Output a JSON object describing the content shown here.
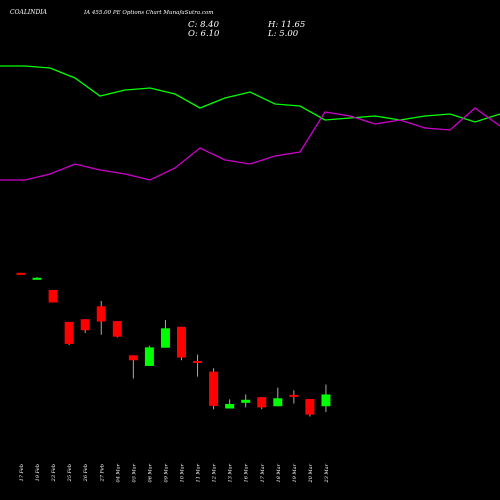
{
  "header": {
    "symbol": "COALINDIA",
    "description": "IA 455.00  PE Options  Chart MunafaSutra.com",
    "close_label": "C: 8.40",
    "high_label": "H: 11.65",
    "open_label": "O: 6.10",
    "low_label": "L: 5.00"
  },
  "chart_data": [
    {
      "type": "line",
      "series": [
        {
          "color": "#00ff00",
          "values": [
            92,
            92,
            91,
            86,
            77,
            80,
            81,
            78,
            71,
            76,
            79,
            73,
            72,
            65,
            66,
            67,
            65,
            67,
            68,
            64,
            68
          ]
        },
        {
          "color": "#cc00cc",
          "values": [
            35,
            35,
            38,
            43,
            40,
            38,
            35,
            41,
            51,
            45,
            43,
            47,
            49,
            69,
            67,
            63,
            65,
            61,
            60,
            71,
            62
          ]
        }
      ]
    },
    {
      "type": "candlestick",
      "categories": [
        "17 Feb",
        "19 Feb",
        "23 Feb",
        "25 Feb",
        "26 Feb",
        "27 Feb",
        "04 Mar",
        "05 Mar",
        "06 Mar",
        "09 Mar",
        "10 Mar",
        "11 Mar",
        "12 Mar",
        "13 Mar",
        "16 Mar",
        "17 Mar",
        "18 Mar",
        "19 Mar",
        "20 Mar",
        "23 Mar"
      ],
      "candles": [
        {
          "open": 90.6,
          "high": 90.6,
          "low": 90.0,
          "close": 90.0
        },
        {
          "open": 87.8,
          "high": 88.4,
          "low": 87.6,
          "close": 88.0
        },
        {
          "open": 81.6,
          "high": 81.6,
          "low": 75.0,
          "close": 75.0
        },
        {
          "open": 64.8,
          "high": 64.8,
          "low": 52.6,
          "close": 53.2
        },
        {
          "open": 66.2,
          "high": 66.2,
          "low": 59.0,
          "close": 60.4
        },
        {
          "open": 73.0,
          "high": 75.8,
          "low": 58.0,
          "close": 65.0
        },
        {
          "open": 65.2,
          "high": 65.2,
          "low": 56.6,
          "close": 57.0
        },
        {
          "open": 47.2,
          "high": 47.2,
          "low": 35.0,
          "close": 44.6
        },
        {
          "open": 41.6,
          "high": 52.2,
          "low": 41.6,
          "close": 51.4
        },
        {
          "open": 51.2,
          "high": 65.8,
          "low": 51.2,
          "close": 61.4
        },
        {
          "open": 62.2,
          "high": 62.2,
          "low": 44.6,
          "close": 46.0
        },
        {
          "open": 44.2,
          "high": 47.6,
          "low": 36.0,
          "close": 43.2
        },
        {
          "open": 38.6,
          "high": 40.4,
          "low": 18.8,
          "close": 20.6
        },
        {
          "open": 19.2,
          "high": 24.0,
          "low": 19.2,
          "close": 21.6
        },
        {
          "open": 22.2,
          "high": 26.6,
          "low": 19.8,
          "close": 23.8
        },
        {
          "open": 25.2,
          "high": 25.2,
          "low": 18.8,
          "close": 19.8
        },
        {
          "open": 20.4,
          "high": 30.2,
          "low": 20.4,
          "close": 24.6
        },
        {
          "open": 26.4,
          "high": 28.8,
          "low": 21.8,
          "close": 26.2
        },
        {
          "open": 24.2,
          "high": 24.2,
          "low": 15.0,
          "close": 16.0
        },
        {
          "open": 20.4,
          "high": 31.8,
          "low": 17.4,
          "close": 26.6
        }
      ],
      "up_color": "#00ff00",
      "down_color": "#ff0000",
      "wick_color": "#aaaaaa"
    }
  ]
}
